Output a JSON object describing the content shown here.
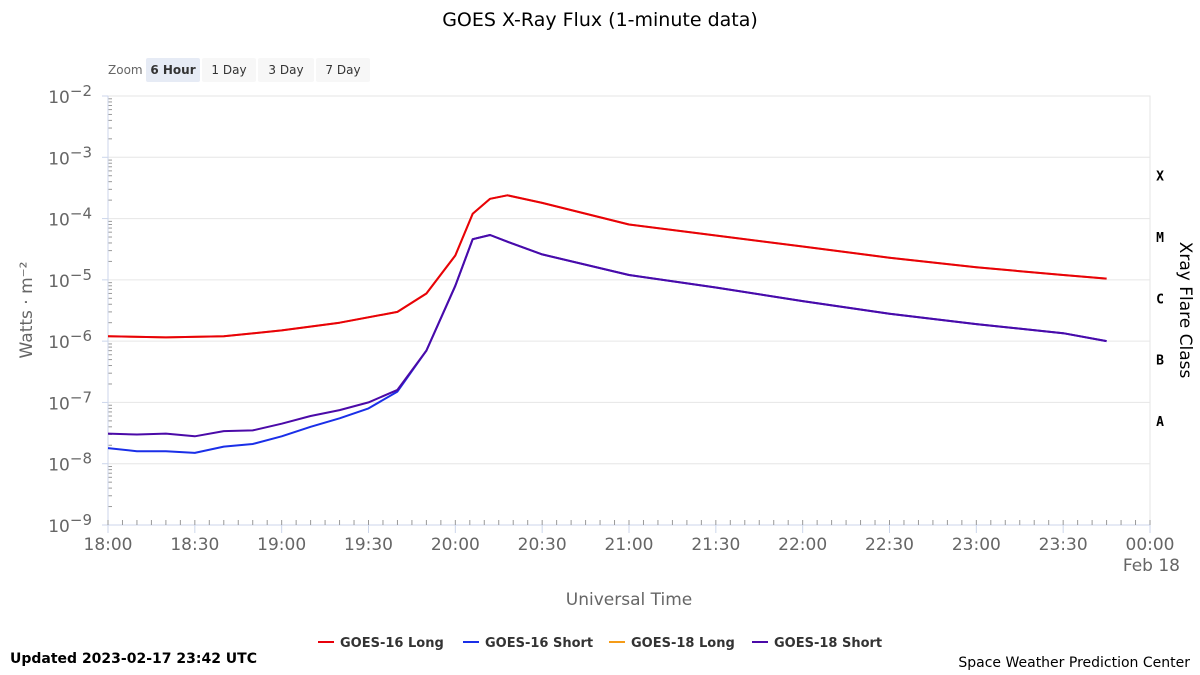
{
  "chart_data": {
    "type": "line",
    "title": "GOES X-Ray Flux (1-minute data)",
    "xlabel": "Universal Time",
    "ylabel": "Watts · m⁻²",
    "y2label": "Xray Flare Class",
    "y_scale": "log",
    "ylim": [
      1e-09,
      0.01
    ],
    "xlim": [
      "2023-02-17T18:00Z",
      "2023-02-18T00:00Z"
    ],
    "x_ticks": [
      "18:00",
      "18:30",
      "19:00",
      "19:30",
      "20:00",
      "20:30",
      "21:00",
      "21:30",
      "22:00",
      "22:30",
      "23:00",
      "23:30",
      "00:00"
    ],
    "x_date_label": "Feb 18",
    "y_tick_bases": [
      "10",
      "10",
      "10",
      "10",
      "10",
      "10",
      "10",
      "10"
    ],
    "y_tick_exponents": [
      "−2",
      "−3",
      "−4",
      "−5",
      "−6",
      "−7",
      "−8",
      "−9"
    ],
    "y_tick_values": [
      0.01,
      0.001,
      0.0001,
      1e-05,
      1e-06,
      1e-07,
      1e-08,
      1e-09
    ],
    "flare_classes": [
      {
        "label": "X",
        "value": 0.0005
      },
      {
        "label": "M",
        "value": 5e-05
      },
      {
        "label": "C",
        "value": 5e-06
      },
      {
        "label": "B",
        "value": 5e-07
      },
      {
        "label": "A",
        "value": 5e-08
      }
    ],
    "grid": true,
    "legend_position": "bottom",
    "series": [
      {
        "name": "GOES-16 Long",
        "color": "#e8000b",
        "x": [
          "18:00",
          "18:20",
          "18:40",
          "19:00",
          "19:20",
          "19:40",
          "19:50",
          "20:00",
          "20:06",
          "20:12",
          "20:18",
          "20:30",
          "21:00",
          "21:30",
          "22:00",
          "22:30",
          "23:00",
          "23:30",
          "23:45"
        ],
        "y": [
          1.2e-06,
          1.15e-06,
          1.2e-06,
          1.5e-06,
          2e-06,
          3e-06,
          6e-06,
          2.5e-05,
          0.00012,
          0.00021,
          0.00024,
          0.00018,
          8e-05,
          5.3e-05,
          3.5e-05,
          2.3e-05,
          1.6e-05,
          1.2e-05,
          1.05e-05
        ]
      },
      {
        "name": "GOES-16 Short",
        "color": "#1a2fe8",
        "x": [
          "18:00",
          "18:10",
          "18:20",
          "18:30",
          "18:40",
          "18:50",
          "19:00",
          "19:10",
          "19:20",
          "19:30",
          "19:40",
          "19:50",
          "20:00",
          "20:06",
          "20:12",
          "20:18",
          "20:30",
          "21:00",
          "21:30",
          "22:00",
          "22:30",
          "23:00",
          "23:30",
          "23:45"
        ],
        "y": [
          1.8e-08,
          1.6e-08,
          1.6e-08,
          1.5e-08,
          1.9e-08,
          2.1e-08,
          2.8e-08,
          4e-08,
          5.5e-08,
          8e-08,
          1.5e-07,
          7e-07,
          8e-06,
          4.6e-05,
          5.4e-05,
          4.2e-05,
          2.6e-05,
          1.2e-05,
          7.5e-06,
          4.5e-06,
          2.8e-06,
          1.9e-06,
          1.35e-06,
          1e-06
        ]
      },
      {
        "name": "GOES-18 Long",
        "color": "#f59c18",
        "x": [
          "18:00",
          "18:20",
          "18:40",
          "19:00",
          "19:20",
          "19:40",
          "19:50",
          "20:00",
          "20:06",
          "20:12",
          "20:18",
          "20:30",
          "21:00",
          "21:30",
          "22:00",
          "22:30",
          "23:00",
          "23:30",
          "23:45"
        ],
        "y": [
          1.2e-06,
          1.15e-06,
          1.2e-06,
          1.5e-06,
          2e-06,
          3e-06,
          6e-06,
          2.5e-05,
          0.00012,
          0.00021,
          0.00024,
          0.00018,
          8e-05,
          5.3e-05,
          3.5e-05,
          2.3e-05,
          1.6e-05,
          1.2e-05,
          1.05e-05
        ]
      },
      {
        "name": "GOES-18 Short",
        "color": "#4b0aa8",
        "x": [
          "18:00",
          "18:10",
          "18:20",
          "18:30",
          "18:40",
          "18:50",
          "19:00",
          "19:10",
          "19:20",
          "19:30",
          "19:40",
          "19:50",
          "20:00",
          "20:06",
          "20:12",
          "20:18",
          "20:30",
          "21:00",
          "21:30",
          "22:00",
          "22:30",
          "23:00",
          "23:30",
          "23:45"
        ],
        "y": [
          3.1e-08,
          3e-08,
          3.1e-08,
          2.8e-08,
          3.4e-08,
          3.5e-08,
          4.5e-08,
          6e-08,
          7.5e-08,
          1e-07,
          1.6e-07,
          7e-07,
          8e-06,
          4.6e-05,
          5.4e-05,
          4.2e-05,
          2.6e-05,
          1.2e-05,
          7.5e-06,
          4.5e-06,
          2.8e-06,
          1.9e-06,
          1.35e-06,
          1e-06
        ]
      }
    ]
  },
  "zoom": {
    "label": "Zoom",
    "buttons": [
      "6 Hour",
      "1 Day",
      "3 Day",
      "7 Day"
    ],
    "active": "6 Hour"
  },
  "footer": {
    "updated": "Updated 2023-02-17 23:42 UTC",
    "credit": "Space Weather Prediction Center"
  }
}
